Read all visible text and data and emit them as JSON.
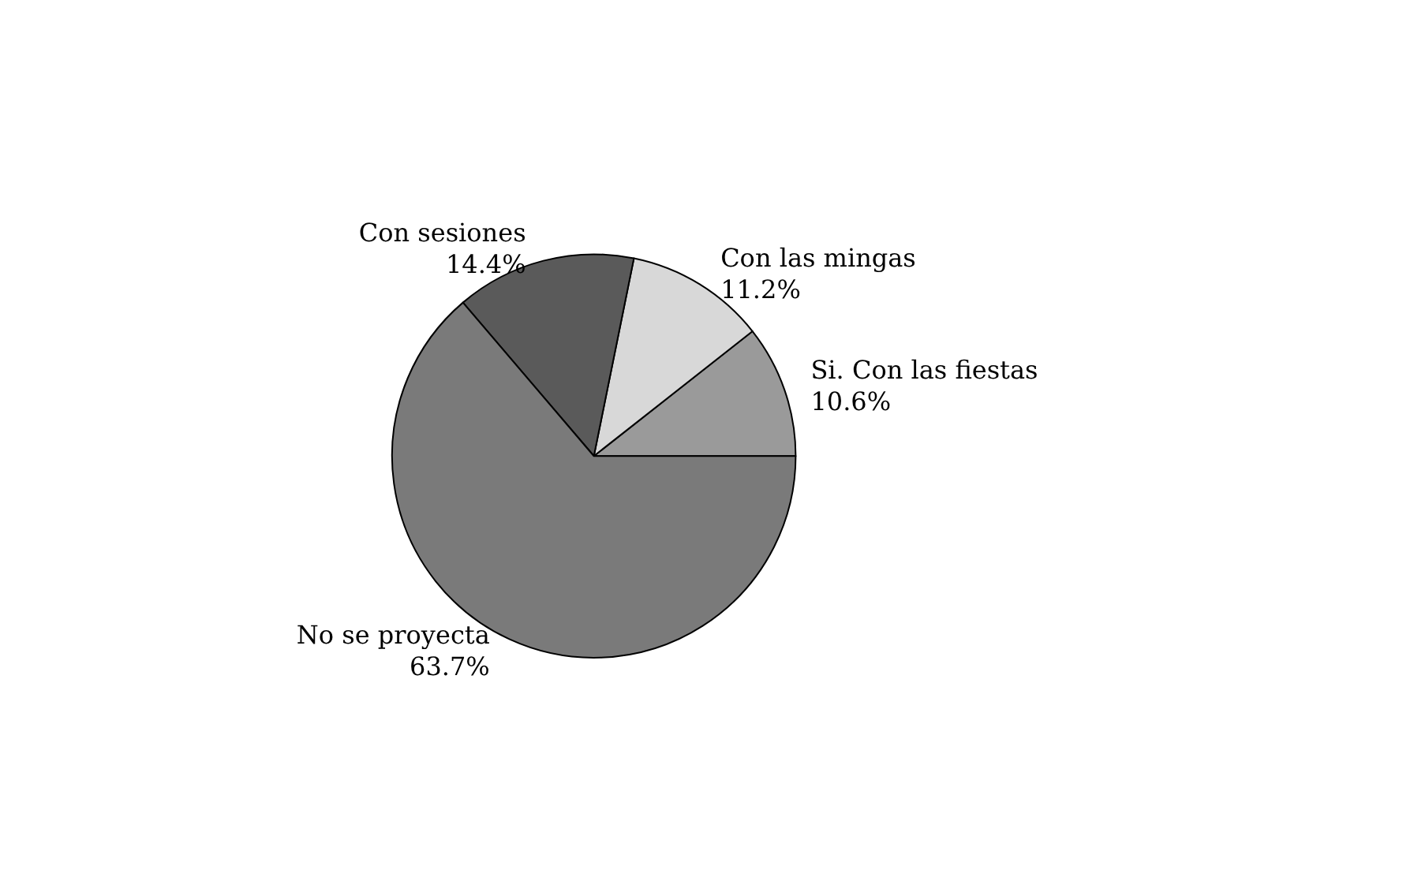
{
  "chart_data": {
    "type": "pie",
    "categories": [
      "Si. Con las fiestas",
      "Con las mingas",
      "Con sesiones",
      "No se proyecta"
    ],
    "values": [
      10.6,
      11.2,
      14.4,
      63.7
    ],
    "value_labels": [
      "10.6%",
      "11.2%",
      "14.4%",
      "63.7%"
    ],
    "colors": [
      "#9a9a9a",
      "#d8d8d8",
      "#5a5a5a",
      "#7a7a7a"
    ],
    "legend": false
  }
}
